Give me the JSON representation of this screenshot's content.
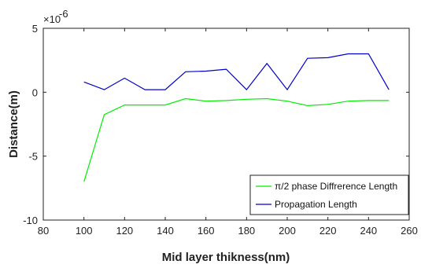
{
  "chart_data": {
    "type": "line",
    "xlabel": "Mid layer thikness(nm)",
    "ylabel": "Distance(m)",
    "scale_base": "×10",
    "scale_exp": "-6",
    "xlim": [
      80,
      260
    ],
    "ylim": [
      -10,
      5
    ],
    "x_ticks": [
      80,
      100,
      120,
      140,
      160,
      180,
      200,
      220,
      240,
      260
    ],
    "y_ticks": [
      5,
      0,
      -5,
      -10
    ],
    "x_tick_labels": [
      "80",
      "100",
      "120",
      "140",
      "160",
      "180",
      "200",
      "220",
      "240",
      "260"
    ],
    "y_tick_labels": [
      "5",
      "0",
      "-5",
      "-10"
    ],
    "grid": false,
    "legend_position": "bottom-right",
    "x": [
      100,
      110,
      120,
      130,
      140,
      150,
      160,
      170,
      180,
      190,
      200,
      210,
      220,
      230,
      240,
      250
    ],
    "series": [
      {
        "name": "π/2 phase Diffrerence Length",
        "color": "#00ee00",
        "values": [
          -7.0,
          -1.75,
          -1.0,
          -1.0,
          -1.0,
          -0.5,
          -0.7,
          -0.65,
          -0.55,
          -0.5,
          -0.7,
          -1.05,
          -0.95,
          -0.7,
          -0.65,
          -0.65
        ]
      },
      {
        "name": "Propagation Length",
        "color": "#0000cc",
        "values": [
          0.8,
          0.2,
          1.1,
          0.2,
          0.2,
          1.6,
          1.65,
          1.8,
          0.2,
          2.25,
          0.2,
          2.65,
          2.7,
          3.0,
          3.0,
          0.2
        ]
      }
    ]
  }
}
